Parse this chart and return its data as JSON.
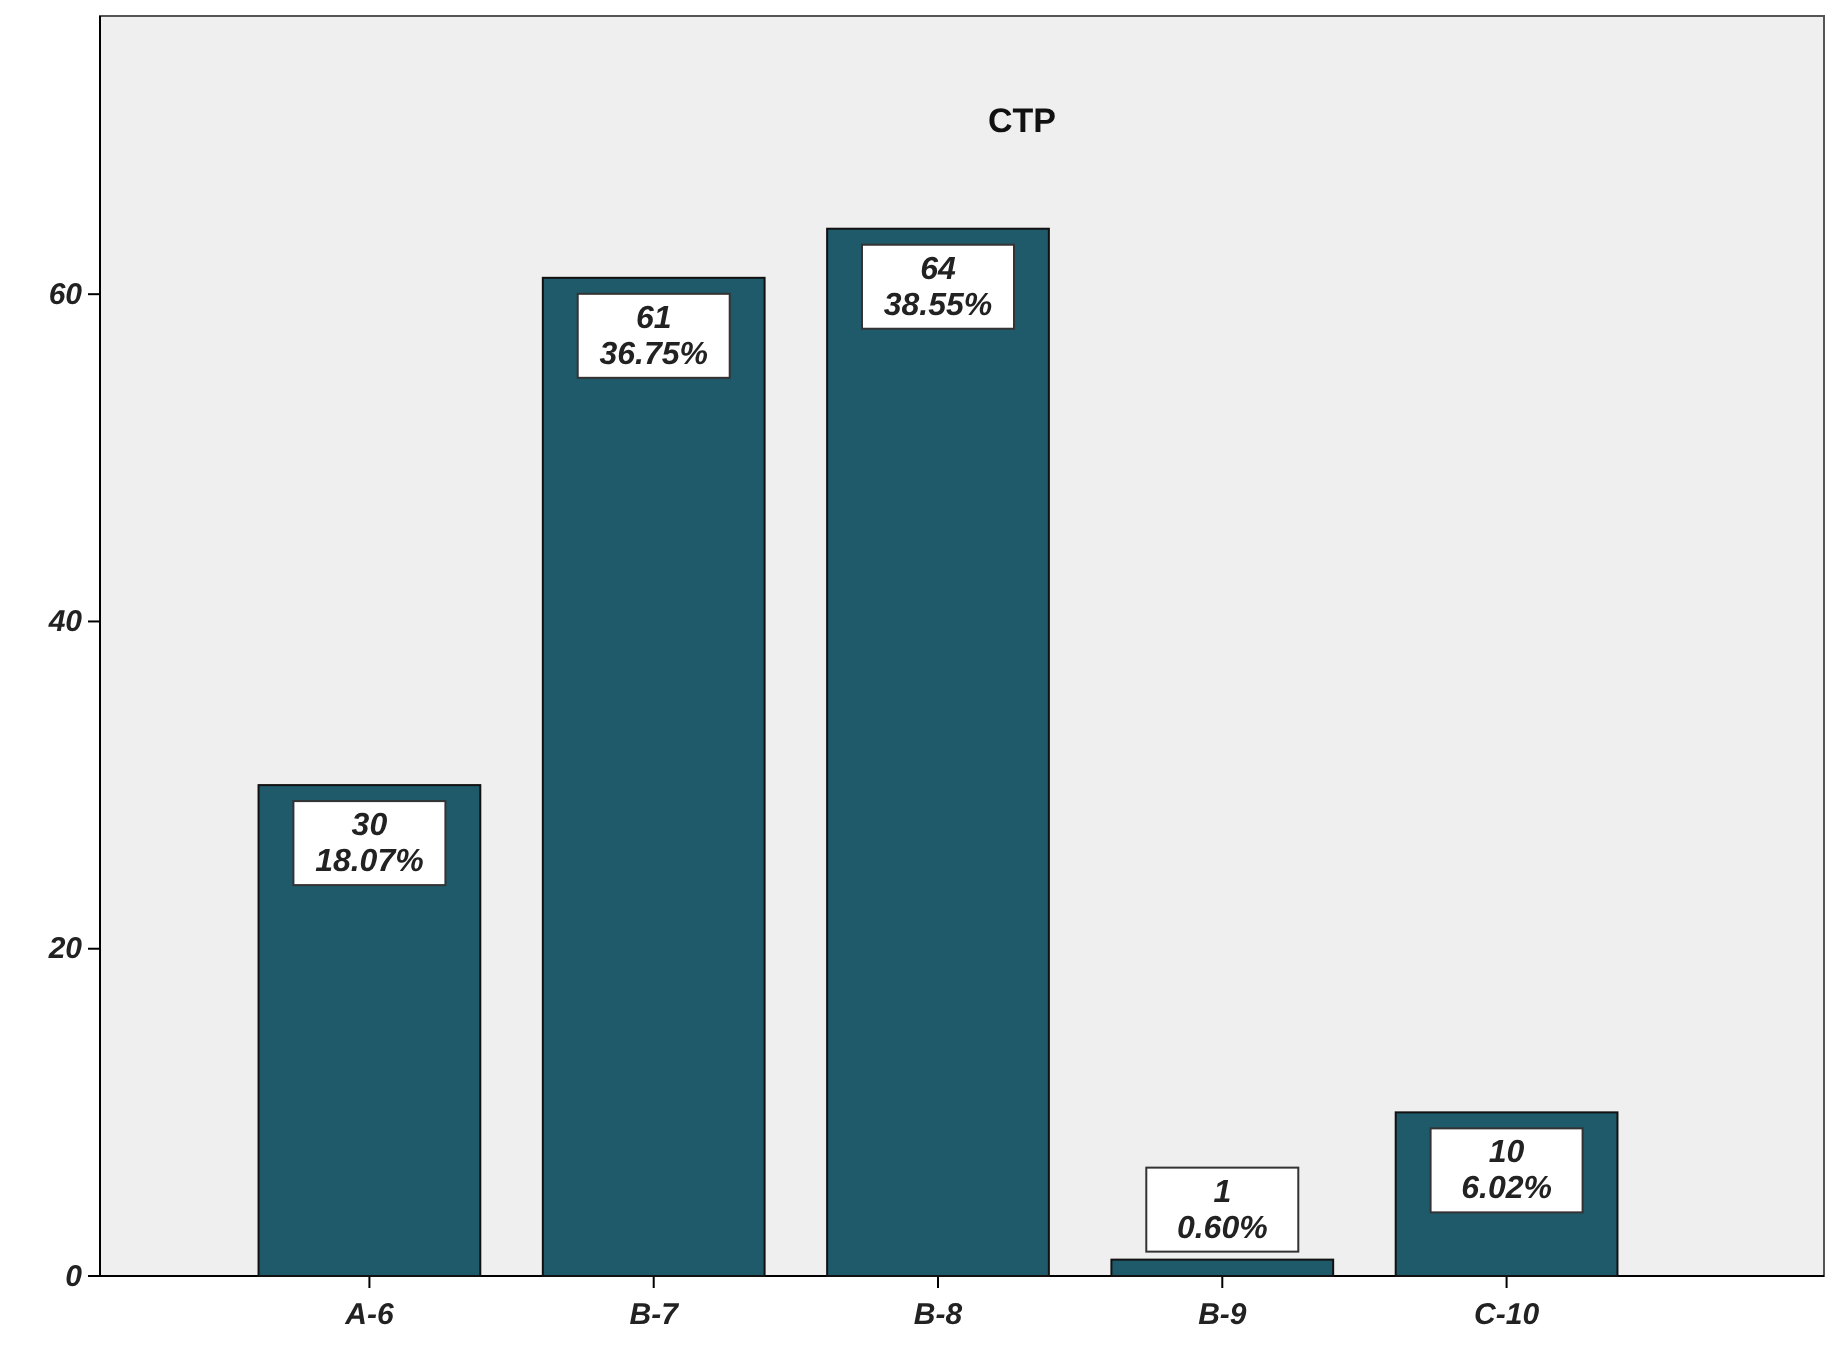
{
  "chart_data": {
    "type": "bar",
    "title": "CTP",
    "categories": [
      "A-6",
      "B-7",
      "B-8",
      "B-9",
      "C-10"
    ],
    "values": [
      30,
      61,
      64,
      1,
      10
    ],
    "value_labels": [
      "30\n18.07%",
      "61\n36.75%",
      "64\n38.55%",
      "1\n0.60%",
      "10\n6.02%"
    ],
    "color": "#1f5a6b",
    "ylim": [
      0,
      77
    ],
    "yticks": [
      0,
      20,
      40,
      60
    ],
    "grid": false
  }
}
